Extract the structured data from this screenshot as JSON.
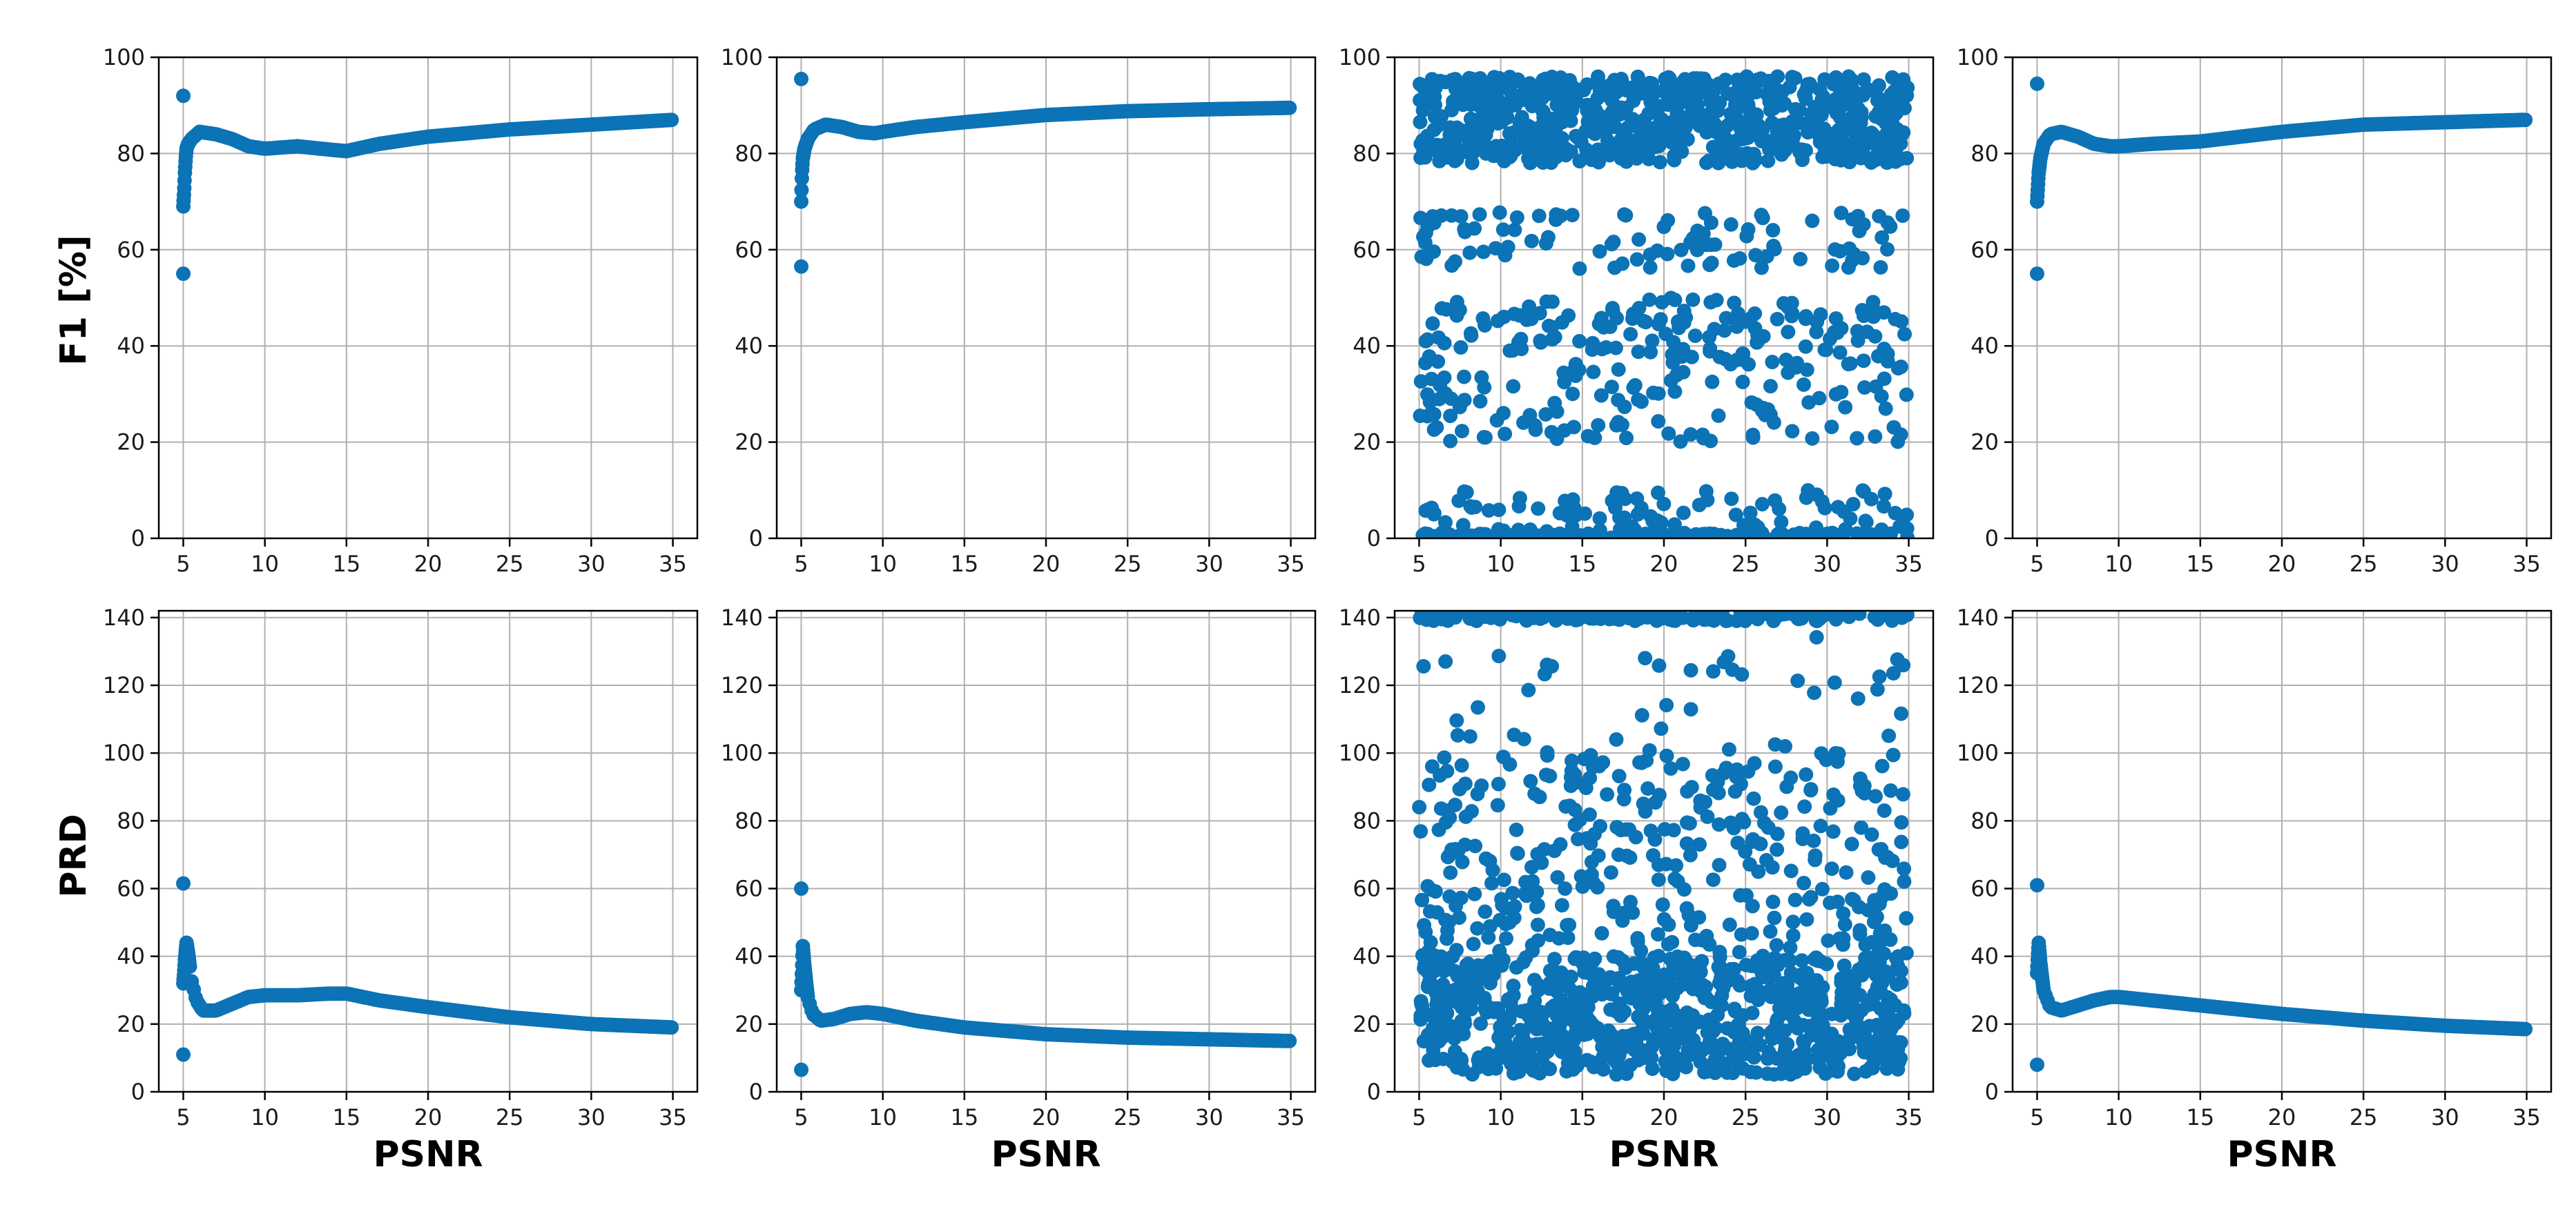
{
  "colors": {
    "marker": "#0b73b6",
    "grid": "#b0b0b0",
    "axis": "#000000"
  },
  "labels": {
    "row1_ylabel": "F1 [%]",
    "row2_ylabel": "PRD",
    "xlabel": "PSNR"
  },
  "chart_data": [
    {
      "type": "scatter",
      "row": 1,
      "col": 1,
      "pattern": "smooth",
      "xlim": [
        3.5,
        36.5
      ],
      "ylim": [
        0,
        100
      ],
      "xticks": [
        5,
        10,
        15,
        20,
        25,
        30,
        35
      ],
      "yticks": [
        0,
        20,
        40,
        60,
        80,
        100
      ],
      "grid": true,
      "outliers": [
        [
          5.0,
          92
        ],
        [
          5.0,
          55
        ]
      ],
      "points": [
        [
          5.0,
          69
        ],
        [
          5.05,
          72
        ],
        [
          5.1,
          76
        ],
        [
          5.15,
          79
        ],
        [
          5.2,
          81
        ],
        [
          5.3,
          82
        ],
        [
          5.5,
          83
        ],
        [
          6.0,
          84.5
        ],
        [
          7.0,
          84
        ],
        [
          8.0,
          83
        ],
        [
          9.0,
          81.5
        ],
        [
          10,
          81
        ],
        [
          12,
          81.5
        ],
        [
          14,
          80.8
        ],
        [
          15,
          80.5
        ],
        [
          17,
          82
        ],
        [
          20,
          83.5
        ],
        [
          25,
          85
        ],
        [
          30,
          86
        ],
        [
          35,
          87
        ]
      ]
    },
    {
      "type": "scatter",
      "row": 1,
      "col": 2,
      "pattern": "smooth",
      "xlim": [
        3.5,
        36.5
      ],
      "ylim": [
        0,
        100
      ],
      "xticks": [
        5,
        10,
        15,
        20,
        25,
        30,
        35
      ],
      "yticks": [
        0,
        20,
        40,
        60,
        80,
        100
      ],
      "grid": true,
      "outliers": [
        [
          5.0,
          95.5
        ],
        [
          5.0,
          56.5
        ]
      ],
      "points": [
        [
          5.0,
          70
        ],
        [
          5.05,
          76
        ],
        [
          5.1,
          79
        ],
        [
          5.2,
          81
        ],
        [
          5.4,
          83
        ],
        [
          5.8,
          85
        ],
        [
          6.5,
          86
        ],
        [
          7.5,
          85.5
        ],
        [
          8.5,
          84.5
        ],
        [
          9.5,
          84.2
        ],
        [
          10,
          84.5
        ],
        [
          12,
          85.5
        ],
        [
          15,
          86.5
        ],
        [
          20,
          88
        ],
        [
          25,
          88.8
        ],
        [
          30,
          89.2
        ],
        [
          35,
          89.5
        ]
      ]
    },
    {
      "type": "scatter",
      "row": 1,
      "col": 3,
      "pattern": "noisy",
      "xlim": [
        3.5,
        36.5
      ],
      "ylim": [
        0,
        100
      ],
      "xticks": [
        5,
        10,
        15,
        20,
        25,
        30,
        35
      ],
      "yticks": [
        0,
        20,
        40,
        60,
        80,
        100
      ],
      "grid": true,
      "clusters": [
        {
          "y": [
            78,
            96
          ],
          "weight": 0.55
        },
        {
          "y": [
            56,
            68
          ],
          "weight": 0.08
        },
        {
          "y": [
            40,
            50
          ],
          "weight": 0.07
        },
        {
          "y": [
            20,
            40
          ],
          "weight": 0.1
        },
        {
          "y": [
            0,
            10
          ],
          "weight": 0.08
        },
        {
          "y": [
            0,
            1
          ],
          "weight": 0.12
        }
      ],
      "point_count": 1400
    },
    {
      "type": "scatter",
      "row": 1,
      "col": 4,
      "pattern": "smooth",
      "xlim": [
        3.5,
        36.5
      ],
      "ylim": [
        0,
        100
      ],
      "xticks": [
        5,
        10,
        15,
        20,
        25,
        30,
        35
      ],
      "yticks": [
        0,
        20,
        40,
        60,
        80,
        100
      ],
      "grid": true,
      "outliers": [
        [
          5.0,
          94.5
        ],
        [
          5.0,
          55
        ]
      ],
      "points": [
        [
          5.0,
          70
        ],
        [
          5.05,
          73
        ],
        [
          5.1,
          76
        ],
        [
          5.2,
          79
        ],
        [
          5.4,
          82
        ],
        [
          5.8,
          84
        ],
        [
          6.5,
          84.5
        ],
        [
          7.5,
          83.5
        ],
        [
          8.5,
          82
        ],
        [
          9.5,
          81.5
        ],
        [
          10,
          81.5
        ],
        [
          12,
          82
        ],
        [
          15,
          82.5
        ],
        [
          20,
          84.5
        ],
        [
          25,
          86
        ],
        [
          30,
          86.5
        ],
        [
          35,
          87
        ]
      ]
    },
    {
      "type": "scatter",
      "row": 2,
      "col": 1,
      "pattern": "smooth",
      "xlim": [
        3.5,
        36.5
      ],
      "ylim": [
        0,
        142
      ],
      "xticks": [
        5,
        10,
        15,
        20,
        25,
        30,
        35
      ],
      "yticks": [
        0,
        20,
        40,
        60,
        80,
        100,
        120,
        140
      ],
      "grid": true,
      "outliers": [
        [
          5.0,
          61.5
        ],
        [
          5.0,
          11
        ]
      ],
      "points": [
        [
          5.0,
          32
        ],
        [
          5.05,
          35
        ],
        [
          5.1,
          39
        ],
        [
          5.2,
          44
        ],
        [
          5.3,
          41
        ],
        [
          5.5,
          33
        ],
        [
          5.8,
          27
        ],
        [
          6.2,
          24
        ],
        [
          7.0,
          24
        ],
        [
          8.0,
          26
        ],
        [
          9.0,
          28
        ],
        [
          10,
          28.5
        ],
        [
          12,
          28.5
        ],
        [
          14,
          29
        ],
        [
          15,
          29
        ],
        [
          17,
          27
        ],
        [
          20,
          25
        ],
        [
          25,
          22
        ],
        [
          30,
          20
        ],
        [
          35,
          19
        ]
      ]
    },
    {
      "type": "scatter",
      "row": 2,
      "col": 2,
      "pattern": "smooth",
      "xlim": [
        3.5,
        36.5
      ],
      "ylim": [
        0,
        142
      ],
      "xticks": [
        5,
        10,
        15,
        20,
        25,
        30,
        35
      ],
      "yticks": [
        0,
        20,
        40,
        60,
        80,
        100,
        120,
        140
      ],
      "grid": true,
      "outliers": [
        [
          5.0,
          60
        ],
        [
          5.0,
          6.5
        ]
      ],
      "points": [
        [
          5.0,
          30
        ],
        [
          5.05,
          36
        ],
        [
          5.1,
          43
        ],
        [
          5.2,
          37
        ],
        [
          5.4,
          28
        ],
        [
          5.7,
          23
        ],
        [
          6.2,
          21
        ],
        [
          7.0,
          21.5
        ],
        [
          8.0,
          23
        ],
        [
          9.0,
          23.5
        ],
        [
          10,
          23
        ],
        [
          12,
          21
        ],
        [
          15,
          19
        ],
        [
          20,
          17
        ],
        [
          25,
          16
        ],
        [
          30,
          15.5
        ],
        [
          35,
          15
        ]
      ]
    },
    {
      "type": "scatter",
      "row": 2,
      "col": 3,
      "pattern": "noisy",
      "xlim": [
        3.5,
        36.5
      ],
      "ylim": [
        0,
        142
      ],
      "xticks": [
        5,
        10,
        15,
        20,
        25,
        30,
        35
      ],
      "yticks": [
        0,
        20,
        40,
        60,
        80,
        100,
        120,
        140
      ],
      "grid": true,
      "clusters": [
        {
          "y": [
            5,
            40
          ],
          "weight": 0.55
        },
        {
          "y": [
            40,
            60
          ],
          "weight": 0.1
        },
        {
          "y": [
            60,
            100
          ],
          "weight": 0.18
        },
        {
          "y": [
            100,
            135
          ],
          "weight": 0.03
        },
        {
          "y": [
            139,
            142
          ],
          "weight": 0.14
        }
      ],
      "point_count": 1400
    },
    {
      "type": "scatter",
      "row": 2,
      "col": 4,
      "pattern": "smooth",
      "xlim": [
        3.5,
        36.5
      ],
      "ylim": [
        0,
        142
      ],
      "xticks": [
        5,
        10,
        15,
        20,
        25,
        30,
        35
      ],
      "yticks": [
        0,
        20,
        40,
        60,
        80,
        100,
        120,
        140
      ],
      "grid": true,
      "outliers": [
        [
          5.0,
          61
        ],
        [
          5.0,
          8
        ]
      ],
      "points": [
        [
          5.0,
          35
        ],
        [
          5.05,
          40
        ],
        [
          5.1,
          44
        ],
        [
          5.2,
          38
        ],
        [
          5.4,
          30
        ],
        [
          5.8,
          25
        ],
        [
          6.5,
          24
        ],
        [
          7.5,
          25.5
        ],
        [
          8.5,
          27
        ],
        [
          9.5,
          28
        ],
        [
          10,
          28
        ],
        [
          12,
          27
        ],
        [
          15,
          25.5
        ],
        [
          20,
          23
        ],
        [
          25,
          21
        ],
        [
          30,
          19.5
        ],
        [
          35,
          18.5
        ]
      ]
    }
  ]
}
